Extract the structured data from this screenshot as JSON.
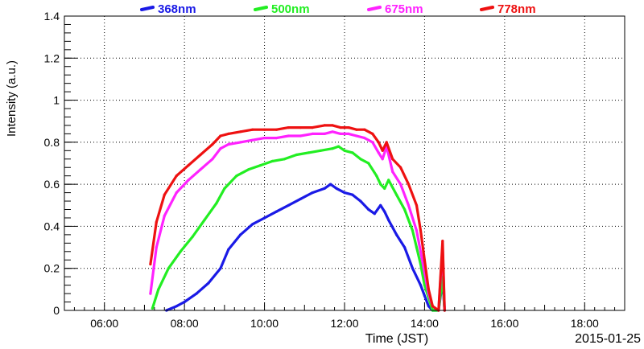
{
  "chart_data": {
    "type": "scatter",
    "title": "",
    "xlabel": "Time (JST)",
    "ylabel": "Intensity (a.u.)",
    "date_label": "2015-01-25",
    "x_unit": "hours (JST)",
    "xlim": [
      5.0,
      19.0
    ],
    "ylim": [
      0,
      1.4
    ],
    "grid": true,
    "legend_position": "top",
    "x_ticks": [
      {
        "value": 6,
        "label": "06:00"
      },
      {
        "value": 8,
        "label": "08:00"
      },
      {
        "value": 10,
        "label": "10:00"
      },
      {
        "value": 12,
        "label": "12:00"
      },
      {
        "value": 14,
        "label": "14:00"
      },
      {
        "value": 16,
        "label": "16:00"
      },
      {
        "value": 18,
        "label": "18:00"
      }
    ],
    "y_ticks": [
      {
        "value": 0,
        "label": "0"
      },
      {
        "value": 0.2,
        "label": "0.2"
      },
      {
        "value": 0.4,
        "label": "0.4"
      },
      {
        "value": 0.6,
        "label": "0.6"
      },
      {
        "value": 0.8,
        "label": "0.8"
      },
      {
        "value": 1.0,
        "label": "1"
      },
      {
        "value": 1.2,
        "label": "1.2"
      },
      {
        "value": 1.4,
        "label": "1.4"
      }
    ],
    "series": [
      {
        "name": "368nm",
        "color": "#1a1ae6",
        "x": [
          7.55,
          7.8,
          8.0,
          8.3,
          8.6,
          8.9,
          9.1,
          9.4,
          9.7,
          10.0,
          10.3,
          10.6,
          10.9,
          11.2,
          11.5,
          11.65,
          11.8,
          12.0,
          12.2,
          12.4,
          12.6,
          12.75,
          12.9,
          13.0,
          13.1,
          13.3,
          13.5,
          13.7,
          13.9,
          14.0,
          14.1,
          14.2,
          14.35,
          14.45,
          14.5
        ],
        "y": [
          0.0,
          0.02,
          0.04,
          0.08,
          0.13,
          0.2,
          0.29,
          0.36,
          0.41,
          0.44,
          0.47,
          0.5,
          0.53,
          0.56,
          0.58,
          0.6,
          0.58,
          0.56,
          0.55,
          0.52,
          0.48,
          0.46,
          0.5,
          0.47,
          0.43,
          0.36,
          0.3,
          0.2,
          0.12,
          0.07,
          0.02,
          0.0,
          0.0,
          0.14,
          0.0
        ]
      },
      {
        "name": "500nm",
        "color": "#22ee22",
        "x": [
          7.2,
          7.35,
          7.6,
          7.9,
          8.2,
          8.5,
          8.8,
          9.0,
          9.3,
          9.6,
          9.9,
          10.2,
          10.5,
          10.8,
          11.1,
          11.4,
          11.7,
          11.85,
          12.0,
          12.2,
          12.4,
          12.6,
          12.8,
          12.9,
          13.0,
          13.1,
          13.3,
          13.5,
          13.7,
          13.8,
          13.9,
          14.0,
          14.1,
          14.2,
          14.35,
          14.45,
          14.5
        ],
        "y": [
          0.01,
          0.1,
          0.2,
          0.28,
          0.35,
          0.43,
          0.51,
          0.58,
          0.64,
          0.67,
          0.69,
          0.71,
          0.72,
          0.74,
          0.75,
          0.76,
          0.77,
          0.78,
          0.76,
          0.75,
          0.72,
          0.7,
          0.64,
          0.6,
          0.58,
          0.62,
          0.55,
          0.48,
          0.38,
          0.3,
          0.22,
          0.12,
          0.06,
          0.0,
          0.0,
          0.16,
          0.0
        ]
      },
      {
        "name": "675nm",
        "color": "#ff22ff",
        "x": [
          7.15,
          7.3,
          7.5,
          7.8,
          8.1,
          8.4,
          8.7,
          8.9,
          9.1,
          9.4,
          9.7,
          10.0,
          10.3,
          10.6,
          10.9,
          11.2,
          11.5,
          11.7,
          11.9,
          12.1,
          12.3,
          12.5,
          12.7,
          12.85,
          12.95,
          13.05,
          13.2,
          13.4,
          13.6,
          13.8,
          13.9,
          14.0,
          14.1,
          14.2,
          14.35,
          14.45,
          14.5
        ],
        "y": [
          0.08,
          0.3,
          0.45,
          0.56,
          0.62,
          0.67,
          0.72,
          0.77,
          0.79,
          0.8,
          0.81,
          0.82,
          0.82,
          0.83,
          0.83,
          0.84,
          0.84,
          0.85,
          0.84,
          0.84,
          0.83,
          0.82,
          0.8,
          0.75,
          0.72,
          0.78,
          0.66,
          0.6,
          0.5,
          0.38,
          0.28,
          0.18,
          0.08,
          0.02,
          0.0,
          0.3,
          0.0
        ]
      },
      {
        "name": "778nm",
        "color": "#ee1111",
        "x": [
          7.15,
          7.3,
          7.5,
          7.8,
          8.1,
          8.4,
          8.7,
          8.9,
          9.1,
          9.4,
          9.7,
          10.0,
          10.3,
          10.6,
          10.9,
          11.2,
          11.5,
          11.7,
          11.9,
          12.1,
          12.3,
          12.5,
          12.7,
          12.85,
          12.95,
          13.05,
          13.2,
          13.4,
          13.6,
          13.8,
          13.9,
          14.0,
          14.1,
          14.2,
          14.35,
          14.45,
          14.5
        ],
        "y": [
          0.22,
          0.42,
          0.55,
          0.64,
          0.69,
          0.74,
          0.79,
          0.83,
          0.84,
          0.85,
          0.86,
          0.86,
          0.86,
          0.87,
          0.87,
          0.87,
          0.88,
          0.88,
          0.87,
          0.87,
          0.86,
          0.86,
          0.84,
          0.8,
          0.76,
          0.8,
          0.72,
          0.68,
          0.6,
          0.5,
          0.38,
          0.24,
          0.1,
          0.02,
          0.0,
          0.33,
          0.0
        ]
      }
    ]
  }
}
